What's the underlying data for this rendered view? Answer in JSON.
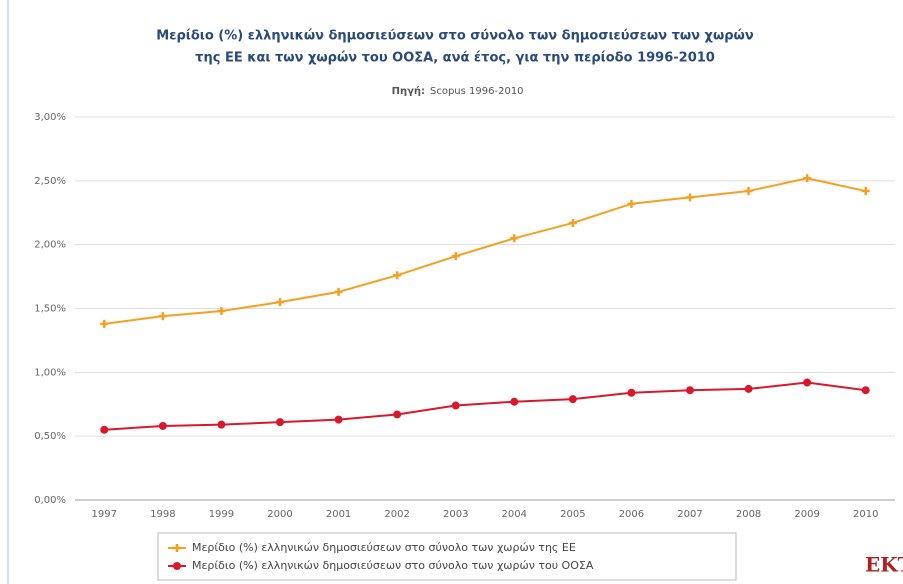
{
  "chart_data": {
    "type": "line",
    "title": [
      "Μερίδιο (%) ελληνικών δημοσιεύσεων στο σύνολο των δημοσιεύσεων των χωρών",
      "της ΕΕ και των χωρών του ΟΟΣΑ, ανά έτος, για την περίοδο 1996-2010"
    ],
    "source_label": "Πηγή:",
    "source": "Scopus 1996-2010",
    "categories": [
      "1997",
      "1998",
      "1999",
      "2000",
      "2001",
      "2002",
      "2003",
      "2004",
      "2005",
      "2006",
      "2007",
      "2008",
      "2009",
      "2010"
    ],
    "series": [
      {
        "name": "Μερίδιο (%) ελληνικών δημοσιεύσεων στο σύνολο των χωρών της ΕΕ",
        "color": "#f5a020",
        "marker": "cross",
        "values": [
          1.38,
          1.44,
          1.48,
          1.55,
          1.63,
          1.76,
          1.91,
          2.05,
          2.17,
          2.32,
          2.37,
          2.42,
          2.52,
          2.42
        ]
      },
      {
        "name": "Μερίδιο (%) ελληνικών δημοσιεύσεων στο σύνολο των χωρών του ΟΟΣΑ",
        "color": "#d9182d",
        "marker": "circle",
        "values": [
          0.55,
          0.58,
          0.59,
          0.61,
          0.63,
          0.67,
          0.74,
          0.77,
          0.79,
          0.84,
          0.86,
          0.87,
          0.92,
          0.86
        ]
      }
    ],
    "ylim": [
      0,
      3
    ],
    "yticks": [
      {
        "value": 0,
        "label": "0,00%"
      },
      {
        "value": 0.5,
        "label": "0,50%"
      },
      {
        "value": 1,
        "label": "1,00%"
      },
      {
        "value": 1.5,
        "label": "1,50%"
      },
      {
        "value": 2,
        "label": "2,00%"
      },
      {
        "value": 2.5,
        "label": "2,50%"
      },
      {
        "value": 3,
        "label": "3,00%"
      }
    ],
    "grid": true,
    "legend": "bottom",
    "logo": "EKT"
  }
}
